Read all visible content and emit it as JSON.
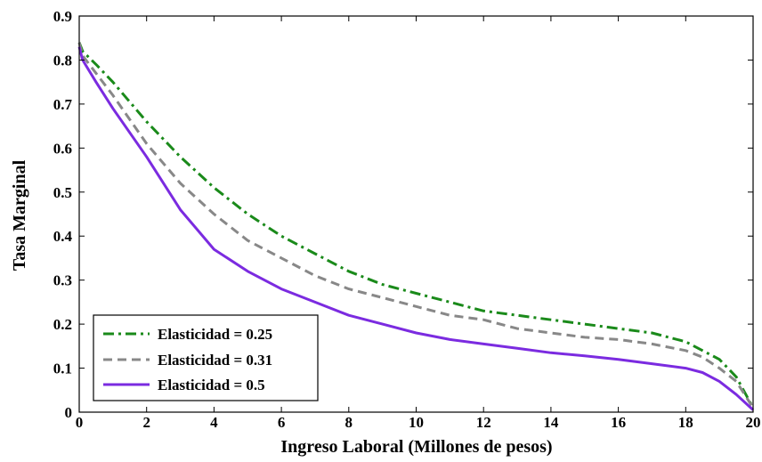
{
  "chart_data": {
    "type": "line",
    "xlabel": "Ingreso Laboral (Millones de pesos)",
    "ylabel": "Tasa Marginal",
    "xlim": [
      0,
      20
    ],
    "ylim": [
      0,
      0.9
    ],
    "xticks": [
      0,
      2,
      4,
      6,
      8,
      10,
      12,
      14,
      16,
      18,
      20
    ],
    "yticks": [
      0,
      0.1,
      0.2,
      0.3,
      0.4,
      0.5,
      0.6,
      0.7,
      0.8,
      0.9
    ],
    "xtick_labels": [
      "0",
      "2",
      "4",
      "6",
      "8",
      "10",
      "12",
      "14",
      "16",
      "18",
      "20"
    ],
    "ytick_labels": [
      "0",
      "0.1",
      "0.2",
      "0.3",
      "0.4",
      "0.5",
      "0.6",
      "0.7",
      "0.8",
      "0.9"
    ],
    "grid": false,
    "legend_position": "bottom-left",
    "series": [
      {
        "name": "Elasticidad = 0.25",
        "color": "#1a8a1a",
        "style": "dash-dot",
        "x": [
          0,
          0.1,
          0.5,
          1,
          2,
          3,
          4,
          5,
          6,
          7,
          8,
          9,
          10,
          11,
          12,
          13,
          14,
          15,
          16,
          17,
          18,
          18.5,
          19,
          19.5,
          20
        ],
        "y": [
          0.84,
          0.82,
          0.79,
          0.75,
          0.66,
          0.58,
          0.51,
          0.45,
          0.4,
          0.36,
          0.32,
          0.29,
          0.27,
          0.25,
          0.23,
          0.22,
          0.21,
          0.2,
          0.19,
          0.18,
          0.16,
          0.14,
          0.12,
          0.08,
          0.01
        ]
      },
      {
        "name": "Elasticidad = 0.31",
        "color": "#888888",
        "style": "dash",
        "x": [
          0,
          0.1,
          0.5,
          1,
          2,
          3,
          4,
          5,
          6,
          7,
          8,
          9,
          10,
          11,
          12,
          13,
          14,
          15,
          16,
          17,
          18,
          18.5,
          19,
          19.5,
          20
        ],
        "y": [
          0.84,
          0.81,
          0.77,
          0.72,
          0.61,
          0.52,
          0.45,
          0.39,
          0.35,
          0.31,
          0.28,
          0.26,
          0.24,
          0.22,
          0.21,
          0.19,
          0.18,
          0.17,
          0.165,
          0.155,
          0.14,
          0.125,
          0.1,
          0.07,
          0.01
        ]
      },
      {
        "name": "Elasticidad = 0.5",
        "color": "#7b2be0",
        "style": "solid",
        "x": [
          0,
          0.1,
          0.5,
          1,
          2,
          3,
          4,
          5,
          6,
          7,
          8,
          9,
          10,
          11,
          12,
          13,
          14,
          15,
          16,
          17,
          18,
          18.5,
          19,
          19.5,
          20
        ],
        "y": [
          0.83,
          0.8,
          0.75,
          0.69,
          0.58,
          0.46,
          0.37,
          0.32,
          0.28,
          0.25,
          0.22,
          0.2,
          0.18,
          0.165,
          0.155,
          0.145,
          0.135,
          0.128,
          0.12,
          0.11,
          0.1,
          0.09,
          0.07,
          0.04,
          0.005
        ]
      }
    ]
  }
}
